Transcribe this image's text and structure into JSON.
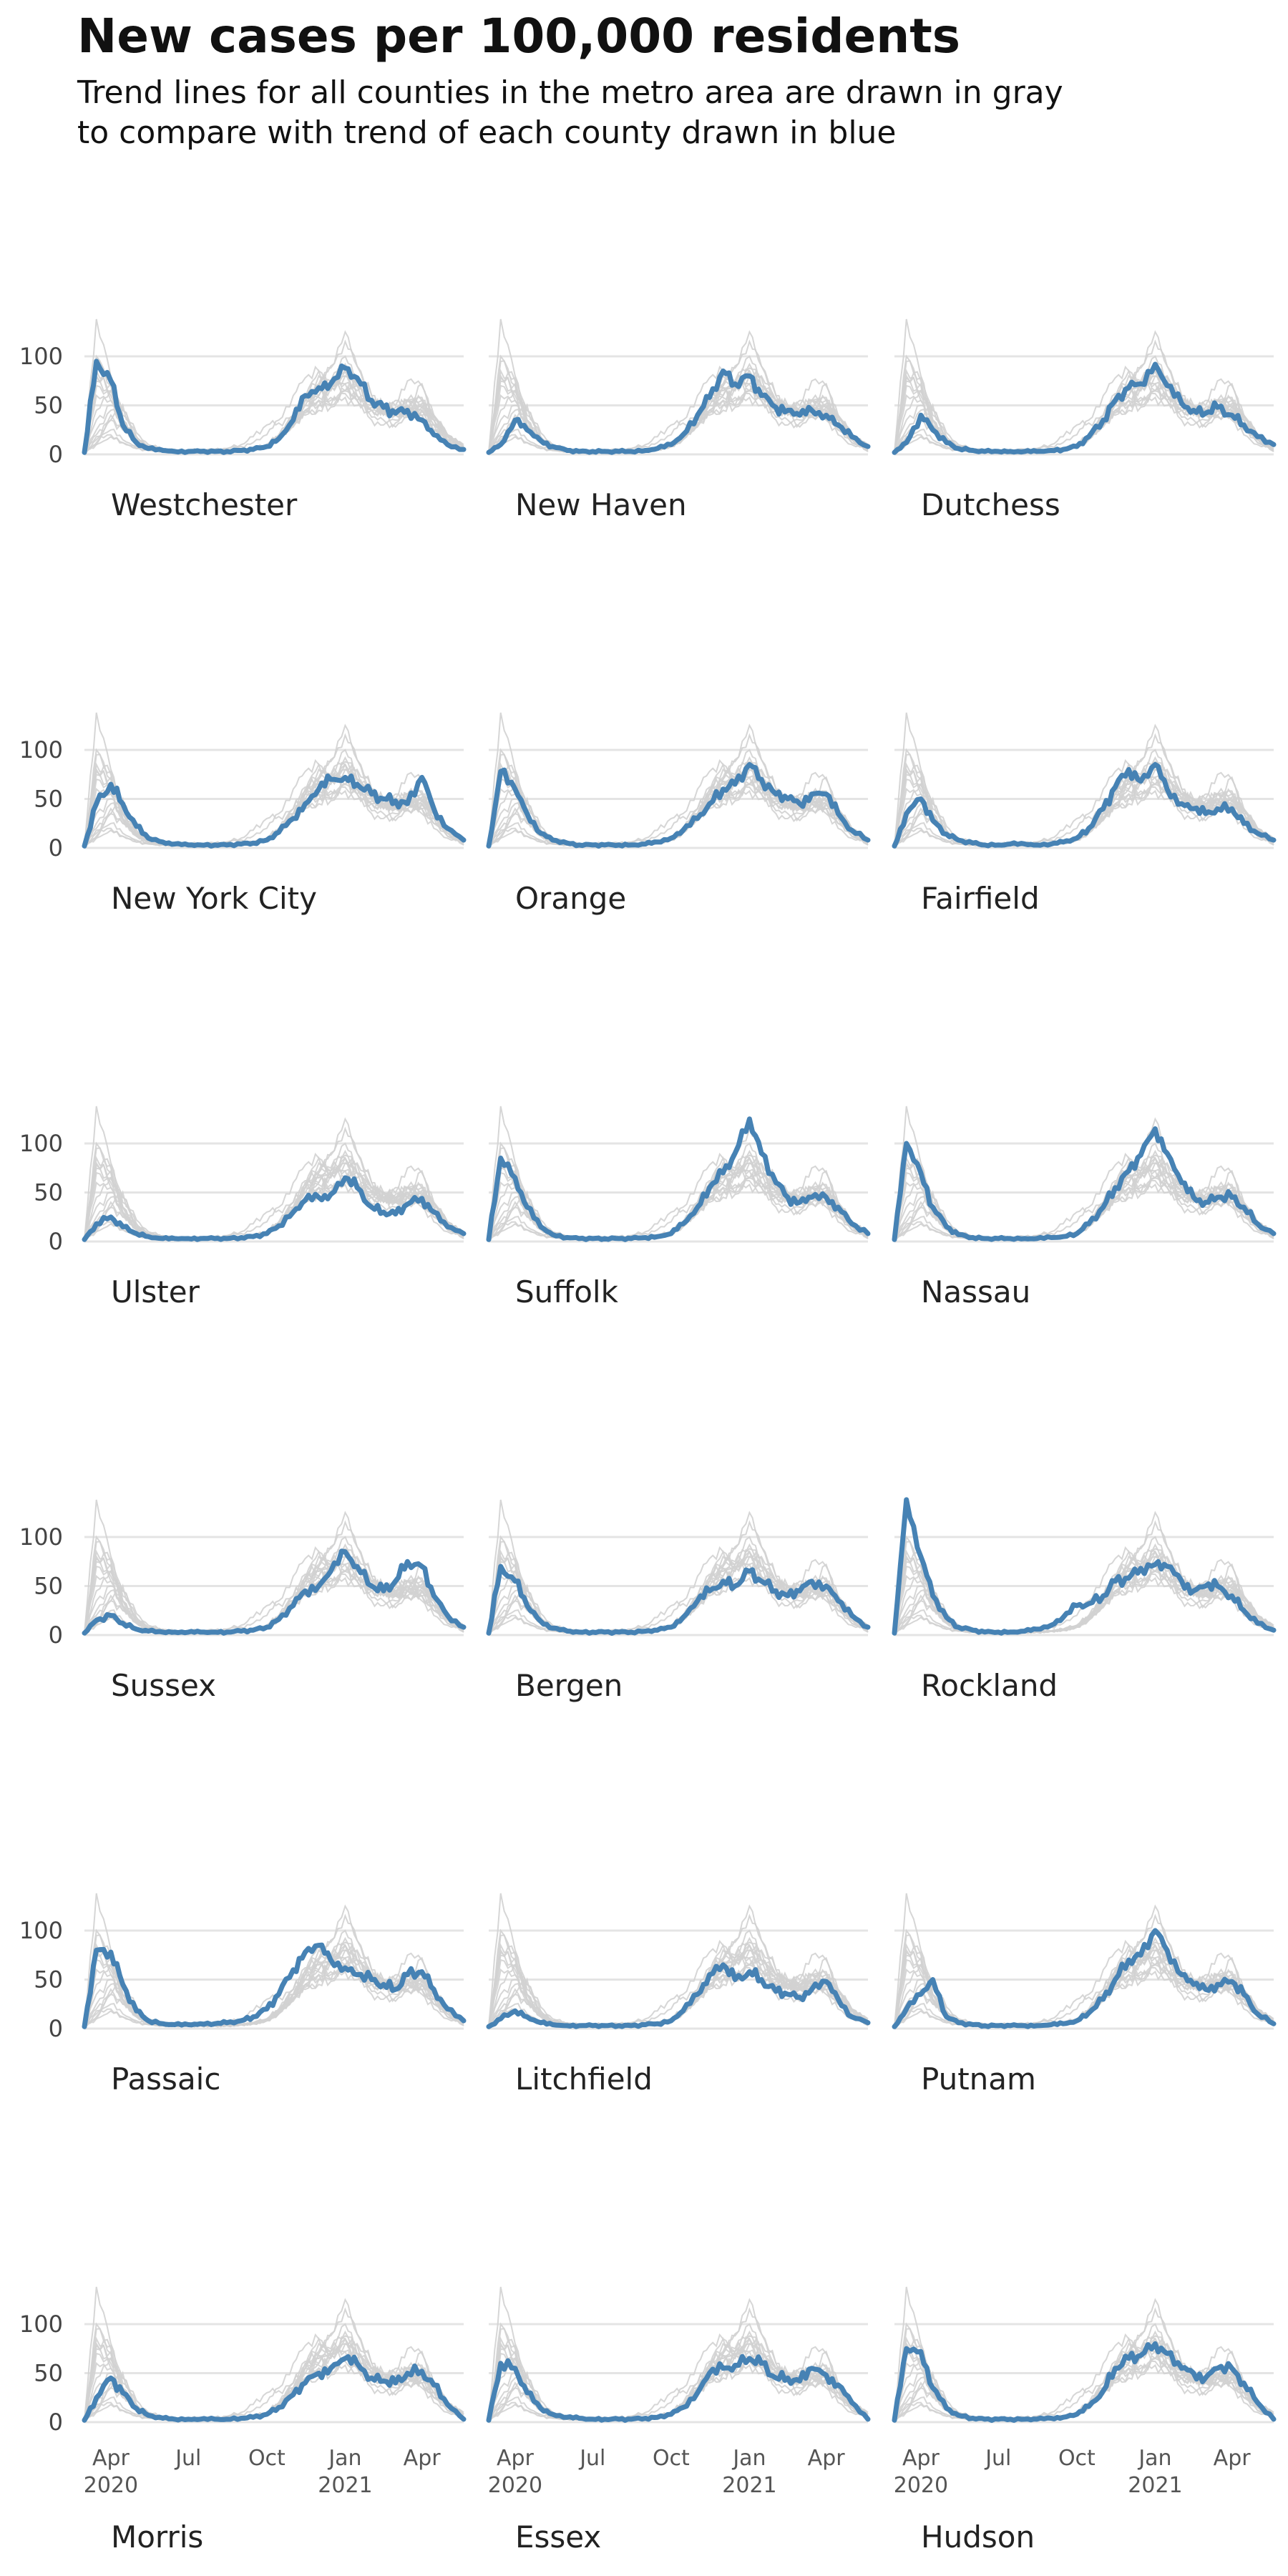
{
  "title": "New cases per 100,000 residents",
  "subtitle": "Trend lines for all counties in the metro area are drawn in gray\nto compare with trend of each county drawn in blue",
  "chart_data": {
    "type": "line",
    "grid": true,
    "layout": "small multiples, 3 columns x 6 rows",
    "colors": {
      "highlight": "#4682b4",
      "background": "#d2d2d2",
      "gridline": "#e4e4e4"
    },
    "y_ticks": [
      0,
      50,
      100
    ],
    "ylim": [
      0,
      145
    ],
    "x_axis": {
      "range": [
        "2020-03-01",
        "2021-05-20"
      ],
      "ticks": [
        {
          "date": "2020-04-01",
          "label": "Apr",
          "sub": "2020"
        },
        {
          "date": "2020-07-01",
          "label": "Jul",
          "sub": ""
        },
        {
          "date": "2020-10-01",
          "label": "Oct",
          "sub": ""
        },
        {
          "date": "2021-01-01",
          "label": "Jan",
          "sub": "2021"
        },
        {
          "date": "2021-04-01",
          "label": "Apr",
          "sub": ""
        }
      ]
    },
    "dates": [
      "2020-03-01",
      "2020-03-15",
      "2020-04-01",
      "2020-04-15",
      "2020-05-01",
      "2020-05-15",
      "2020-06-01",
      "2020-06-15",
      "2020-07-01",
      "2020-07-15",
      "2020-08-01",
      "2020-08-15",
      "2020-09-01",
      "2020-09-15",
      "2020-10-01",
      "2020-10-15",
      "2020-11-01",
      "2020-11-15",
      "2020-12-01",
      "2020-12-15",
      "2021-01-01",
      "2021-01-15",
      "2021-02-01",
      "2021-02-15",
      "2021-03-01",
      "2021-03-15",
      "2021-04-01",
      "2021-04-15",
      "2021-05-01",
      "2021-05-20"
    ],
    "series": [
      {
        "name": "Westchester",
        "values": [
          2,
          95,
          75,
          30,
          12,
          6,
          4,
          3,
          3,
          3,
          3,
          3,
          4,
          5,
          8,
          16,
          35,
          60,
          68,
          72,
          88,
          78,
          55,
          48,
          42,
          45,
          35,
          20,
          10,
          5
        ]
      },
      {
        "name": "New Haven",
        "values": [
          2,
          10,
          35,
          25,
          14,
          8,
          4,
          3,
          3,
          3,
          3,
          3,
          4,
          6,
          10,
          20,
          40,
          58,
          85,
          72,
          80,
          60,
          48,
          45,
          40,
          45,
          40,
          30,
          18,
          8
        ]
      },
      {
        "name": "Dutchess",
        "values": [
          2,
          12,
          40,
          25,
          12,
          6,
          4,
          3,
          3,
          3,
          3,
          3,
          4,
          5,
          8,
          18,
          35,
          55,
          68,
          72,
          92,
          70,
          52,
          45,
          42,
          48,
          40,
          30,
          18,
          10
        ]
      },
      {
        "name": "New York City",
        "values": [
          2,
          45,
          65,
          45,
          22,
          10,
          6,
          4,
          3,
          3,
          3,
          3,
          4,
          5,
          8,
          16,
          30,
          45,
          60,
          70,
          72,
          65,
          55,
          50,
          48,
          45,
          72,
          40,
          20,
          8
        ]
      },
      {
        "name": "Orange",
        "values": [
          2,
          78,
          60,
          35,
          15,
          8,
          5,
          3,
          3,
          3,
          3,
          3,
          4,
          6,
          10,
          18,
          30,
          45,
          60,
          65,
          85,
          70,
          55,
          50,
          45,
          55,
          55,
          35,
          18,
          8
        ]
      },
      {
        "name": "Fairfield",
        "values": [
          2,
          35,
          50,
          28,
          14,
          8,
          5,
          3,
          3,
          4,
          4,
          3,
          4,
          6,
          10,
          20,
          40,
          62,
          80,
          68,
          85,
          60,
          45,
          40,
          35,
          40,
          40,
          25,
          15,
          8
        ]
      },
      {
        "name": "Ulster",
        "values": [
          2,
          18,
          25,
          15,
          8,
          5,
          3,
          3,
          3,
          3,
          3,
          3,
          4,
          5,
          8,
          16,
          30,
          42,
          45,
          48,
          65,
          55,
          35,
          30,
          28,
          38,
          44,
          30,
          15,
          8
        ]
      },
      {
        "name": "Suffolk",
        "values": [
          2,
          85,
          65,
          35,
          15,
          7,
          4,
          3,
          3,
          3,
          3,
          3,
          4,
          5,
          8,
          18,
          35,
          55,
          70,
          90,
          125,
          90,
          60,
          45,
          40,
          45,
          45,
          35,
          18,
          8
        ]
      },
      {
        "name": "Nassau",
        "values": [
          2,
          100,
          70,
          35,
          15,
          7,
          4,
          3,
          3,
          3,
          3,
          3,
          4,
          5,
          8,
          18,
          35,
          55,
          72,
          88,
          115,
          90,
          60,
          45,
          40,
          45,
          45,
          35,
          18,
          8
        ]
      },
      {
        "name": "Sussex",
        "values": [
          2,
          15,
          20,
          12,
          6,
          4,
          3,
          3,
          3,
          3,
          3,
          3,
          4,
          5,
          8,
          16,
          30,
          45,
          50,
          65,
          85,
          70,
          50,
          45,
          55,
          75,
          70,
          40,
          20,
          8
        ]
      },
      {
        "name": "Bergen",
        "values": [
          2,
          70,
          55,
          30,
          14,
          7,
          4,
          3,
          3,
          3,
          3,
          3,
          4,
          5,
          8,
          18,
          35,
          45,
          55,
          50,
          65,
          55,
          45,
          40,
          45,
          55,
          50,
          35,
          20,
          8
        ]
      },
      {
        "name": "Rockland",
        "values": [
          2,
          138,
          80,
          40,
          18,
          8,
          5,
          3,
          3,
          3,
          4,
          6,
          10,
          18,
          30,
          32,
          40,
          55,
          58,
          68,
          72,
          70,
          55,
          45,
          50,
          50,
          40,
          25,
          12,
          5
        ]
      },
      {
        "name": "Passaic",
        "values": [
          2,
          80,
          78,
          45,
          18,
          8,
          5,
          4,
          4,
          5,
          5,
          6,
          8,
          12,
          20,
          35,
          60,
          78,
          85,
          70,
          62,
          55,
          50,
          45,
          40,
          55,
          58,
          40,
          20,
          8
        ]
      },
      {
        "name": "Litchfield",
        "values": [
          2,
          10,
          18,
          12,
          6,
          4,
          3,
          3,
          3,
          3,
          3,
          3,
          4,
          5,
          8,
          18,
          35,
          55,
          65,
          50,
          58,
          50,
          38,
          35,
          32,
          40,
          48,
          30,
          12,
          6
        ]
      },
      {
        "name": "Putnam",
        "values": [
          2,
          20,
          35,
          50,
          12,
          6,
          4,
          3,
          3,
          3,
          3,
          3,
          4,
          5,
          8,
          16,
          30,
          50,
          70,
          75,
          100,
          80,
          55,
          45,
          40,
          45,
          48,
          35,
          15,
          5
        ]
      },
      {
        "name": "Morris",
        "values": [
          2,
          25,
          45,
          30,
          14,
          7,
          4,
          3,
          3,
          3,
          3,
          3,
          4,
          5,
          8,
          15,
          28,
          40,
          50,
          55,
          65,
          60,
          45,
          42,
          40,
          50,
          52,
          38,
          18,
          3
        ]
      },
      {
        "name": "Essex",
        "values": [
          2,
          60,
          55,
          30,
          14,
          8,
          5,
          4,
          3,
          3,
          3,
          3,
          4,
          5,
          8,
          15,
          30,
          50,
          55,
          58,
          65,
          60,
          45,
          45,
          42,
          55,
          48,
          38,
          20,
          3
        ]
      },
      {
        "name": "Hudson",
        "values": [
          2,
          75,
          72,
          35,
          14,
          7,
          4,
          3,
          3,
          3,
          3,
          3,
          4,
          5,
          8,
          16,
          32,
          55,
          65,
          68,
          80,
          70,
          55,
          50,
          45,
          55,
          55,
          40,
          20,
          3
        ]
      }
    ]
  }
}
